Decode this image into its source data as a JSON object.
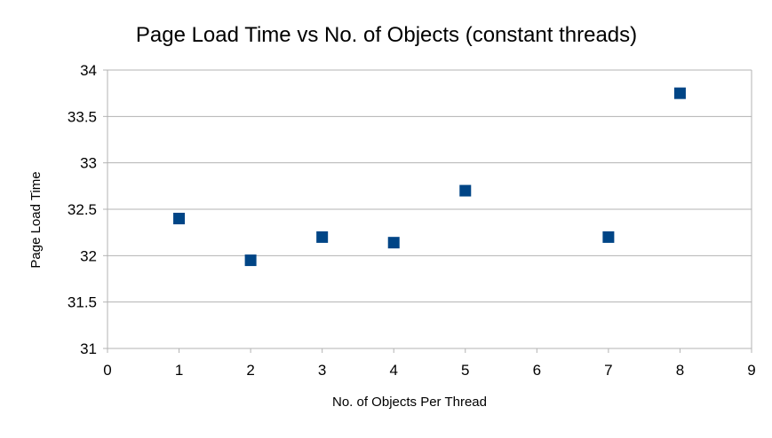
{
  "chart_data": {
    "type": "scatter",
    "title": "Page Load Time vs No. of Objects (constant threads)",
    "xlabel": "No. of Objects Per Thread",
    "ylabel": "Page Load Time",
    "xlim": [
      0,
      9
    ],
    "ylim": [
      31,
      34
    ],
    "xticks": [
      0,
      1,
      2,
      3,
      4,
      5,
      6,
      7,
      8,
      9
    ],
    "yticks": [
      31,
      31.5,
      32,
      32.5,
      33,
      33.5,
      34
    ],
    "grid": true,
    "legend": "none",
    "marker": "square",
    "color": "#004586",
    "points": [
      {
        "x": 1,
        "y": 32.4
      },
      {
        "x": 2,
        "y": 31.95
      },
      {
        "x": 3,
        "y": 32.2
      },
      {
        "x": 4,
        "y": 32.14
      },
      {
        "x": 5,
        "y": 32.7
      },
      {
        "x": 7,
        "y": 32.2
      },
      {
        "x": 8,
        "y": 33.75
      }
    ]
  }
}
